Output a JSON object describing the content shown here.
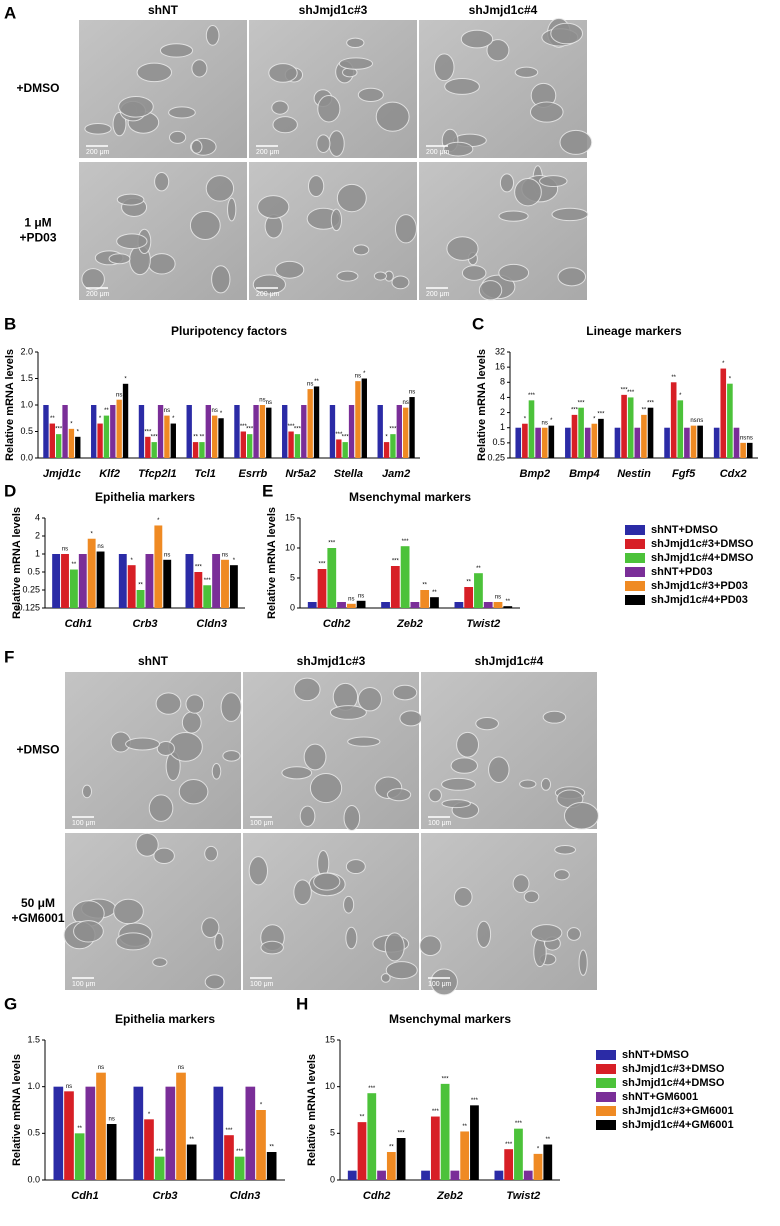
{
  "micrographs": [
    {
      "panel": "A",
      "columns": [
        "shNT",
        "shJmjd1c#3",
        "shJmjd1c#4"
      ],
      "rows": [
        [
          "+DMSO"
        ],
        [
          "1 μM",
          "+PD03"
        ]
      ],
      "scale_bar": "200 μm"
    },
    {
      "panel": "F",
      "columns": [
        "shNT",
        "shJmjd1c#3",
        "shJmjd1c#4"
      ],
      "rows": [
        [
          "+DMSO"
        ],
        [
          "50 μM",
          "+GM6001"
        ]
      ],
      "scale_bar": "100 μm"
    }
  ],
  "chart_data": [
    {
      "type": "bar",
      "panel": "B",
      "title": "Pluripotency factors",
      "y_label": "Relative mRNA levels",
      "categories": [
        "Jmjd1c",
        "Klf2",
        "Tfcp2l1",
        "Tcl1",
        "Esrrb",
        "Nr5a2",
        "Stella",
        "Jam2"
      ],
      "ylim": [
        0,
        2
      ],
      "yticks": [
        {
          "value": 0,
          "label": "0.0"
        },
        0.5,
        {
          "value": 1,
          "label": "1.0"
        },
        1.5,
        {
          "value": 2,
          "label": "2.0"
        }
      ],
      "series": [
        {
          "color": "#2b2ba6",
          "values": [
            1,
            1,
            1,
            1,
            1,
            1,
            1,
            1
          ]
        },
        {
          "color": "#d71f26",
          "values": [
            0.65,
            0.65,
            0.4,
            0.3,
            0.5,
            0.5,
            0.35,
            0.3
          ],
          "annotations": [
            "**",
            "*",
            "***",
            "**",
            "***",
            "***",
            "***",
            "*"
          ]
        },
        {
          "color": "#4cc23a",
          "values": [
            0.45,
            0.8,
            0.3,
            0.3,
            0.45,
            0.45,
            0.3,
            0.45
          ],
          "annotations": [
            "***",
            "**",
            "***",
            "**",
            "***",
            "***",
            "***",
            "***"
          ]
        },
        {
          "color": "#7a2e98",
          "values": [
            1,
            1,
            1,
            1,
            1,
            1,
            1,
            1
          ]
        },
        {
          "color": "#ef8a23",
          "values": [
            0.55,
            1.1,
            0.8,
            0.8,
            1,
            1.3,
            1.45,
            0.95
          ],
          "annotations": [
            "*",
            "ns",
            "ns",
            "ns",
            "ns",
            "ns",
            "ns",
            "ns"
          ]
        },
        {
          "color": "#000000",
          "values": [
            0.4,
            1.4,
            0.65,
            0.75,
            0.95,
            1.35,
            1.5,
            1.15
          ],
          "annotations": [
            "*",
            "*",
            "*",
            "*",
            "ns",
            "**",
            "*",
            "ns"
          ]
        }
      ]
    },
    {
      "type": "bar",
      "panel": "C",
      "title": "Lineage markers",
      "y_label": "Relative mRNA levels",
      "log_scale": 2,
      "categories": [
        "Bmp2",
        "Bmp4",
        "Nestin",
        "Fgf5",
        "Cdx2"
      ],
      "ylim": [
        0.25,
        32
      ],
      "yticks": [
        0.25,
        0.5,
        1,
        2,
        4,
        8,
        16,
        32
      ],
      "series": [
        {
          "color": "#2b2ba6",
          "values": [
            1,
            1,
            1,
            1,
            1
          ]
        },
        {
          "color": "#d71f26",
          "values": [
            1.2,
            1.8,
            4.5,
            8,
            15
          ],
          "annotations": [
            "*",
            "***",
            "***",
            "**",
            "*"
          ]
        },
        {
          "color": "#4cc23a",
          "values": [
            3.5,
            2.5,
            4,
            3.5,
            7.5
          ],
          "annotations": [
            "***",
            "***",
            "***",
            "*",
            "*"
          ]
        },
        {
          "color": "#7a2e98",
          "values": [
            1,
            1,
            1,
            1,
            1
          ]
        },
        {
          "color": "#ef8a23",
          "values": [
            1,
            1.2,
            1.8,
            1.1,
            0.5
          ],
          "annotations": [
            "ns",
            "*",
            "**",
            "ns",
            "ns"
          ]
        },
        {
          "color": "#000000",
          "values": [
            1.1,
            1.5,
            2.5,
            1.1,
            0.5
          ],
          "annotations": [
            "*",
            "***",
            "***",
            "ns",
            "ns"
          ]
        }
      ]
    },
    {
      "type": "bar",
      "panel": "D",
      "title": "Epithelia markers",
      "y_label": "Relative mRNA levels",
      "log_scale": 2,
      "categories": [
        "Cdh1",
        "Crb3",
        "Cldn3"
      ],
      "ylim": [
        0.125,
        4
      ],
      "yticks": [
        0.125,
        0.25,
        0.5,
        1,
        2,
        4
      ],
      "series": [
        {
          "color": "#2b2ba6",
          "values": [
            1,
            1,
            1
          ]
        },
        {
          "color": "#d71f26",
          "values": [
            1,
            0.65,
            0.5
          ],
          "annotations": [
            "ns",
            "*",
            "***"
          ]
        },
        {
          "color": "#4cc23a",
          "values": [
            0.55,
            0.25,
            0.3
          ],
          "annotations": [
            "**",
            "**",
            "***"
          ]
        },
        {
          "color": "#7a2e98",
          "values": [
            1,
            1,
            1
          ]
        },
        {
          "color": "#ef8a23",
          "values": [
            1.8,
            3,
            0.8
          ],
          "annotations": [
            "*",
            "*",
            "ns"
          ]
        },
        {
          "color": "#000000",
          "values": [
            1.1,
            0.8,
            0.65
          ],
          "annotations": [
            "ns",
            "ns",
            "*"
          ]
        }
      ]
    },
    {
      "type": "bar",
      "panel": "E",
      "title": "Msenchymal markers",
      "y_label": "Relative mRNA levels",
      "legend": "right",
      "categories": [
        "Cdh2",
        "Zeb2",
        "Twist2"
      ],
      "ylim": [
        0,
        15
      ],
      "yticks": [
        0,
        5,
        10,
        15
      ],
      "series": [
        {
          "name": "shNT+DMSO",
          "color": "#2b2ba6",
          "values": [
            1,
            1,
            1
          ]
        },
        {
          "name": "shJmjd1c#3+DMSO",
          "color": "#d71f26",
          "values": [
            6.5,
            7,
            3.5
          ],
          "annotations": [
            "***",
            "***",
            "**"
          ]
        },
        {
          "name": "shJmjd1c#4+DMSO",
          "color": "#4cc23a",
          "values": [
            10,
            10.3,
            5.8
          ],
          "annotations": [
            "***",
            "***",
            "**"
          ]
        },
        {
          "name": "shNT+PD03",
          "color": "#7a2e98",
          "values": [
            1,
            1,
            1
          ]
        },
        {
          "name": "shJmjd1c#3+PD03",
          "color": "#ef8a23",
          "values": [
            0.7,
            3,
            1
          ],
          "annotations": [
            "ns",
            "**",
            "ns"
          ]
        },
        {
          "name": "shJmjd1c#4+PD03",
          "color": "#000000",
          "values": [
            1.2,
            1.8,
            0.3
          ],
          "annotations": [
            "ns",
            "**",
            "**"
          ]
        }
      ]
    },
    {
      "type": "bar",
      "panel": "G",
      "title": "Epithelia markers",
      "y_label": "Relative mRNA levels",
      "categories": [
        "Cdh1",
        "Crb3",
        "Cldn3"
      ],
      "ylim": [
        0,
        1.5
      ],
      "yticks": [
        {
          "value": 0,
          "label": "0.0"
        },
        0.5,
        {
          "value": 1,
          "label": "1.0"
        },
        1.5
      ],
      "series": [
        {
          "color": "#2b2ba6",
          "values": [
            1,
            1,
            1
          ]
        },
        {
          "color": "#d71f26",
          "values": [
            0.95,
            0.65,
            0.48
          ],
          "annotations": [
            "ns",
            "*",
            "***"
          ]
        },
        {
          "color": "#4cc23a",
          "values": [
            0.5,
            0.25,
            0.25
          ],
          "annotations": [
            "**",
            "***",
            "***"
          ]
        },
        {
          "color": "#7a2e98",
          "values": [
            1,
            1,
            1
          ]
        },
        {
          "color": "#ef8a23",
          "values": [
            1.15,
            1.15,
            0.75
          ],
          "annotations": [
            "ns",
            "ns",
            "*"
          ]
        },
        {
          "color": "#000000",
          "values": [
            0.6,
            0.38,
            0.3
          ],
          "annotations": [
            "ns",
            "**",
            "**"
          ]
        }
      ]
    },
    {
      "type": "bar",
      "panel": "H",
      "title": "Msenchymal markers",
      "y_label": "Relative mRNA levels",
      "legend": "right",
      "categories": [
        "Cdh2",
        "Zeb2",
        "Twist2"
      ],
      "ylim": [
        0,
        15
      ],
      "yticks": [
        0,
        5,
        10,
        15
      ],
      "series": [
        {
          "name": "shNT+DMSO",
          "color": "#2b2ba6",
          "values": [
            1,
            1,
            1
          ]
        },
        {
          "name": "shJmjd1c#3+DMSO",
          "color": "#d71f26",
          "values": [
            6.2,
            6.8,
            3.3
          ],
          "annotations": [
            "**",
            "***",
            "***"
          ]
        },
        {
          "name": "shJmjd1c#4+DMSO",
          "color": "#4cc23a",
          "values": [
            9.3,
            10.3,
            5.5
          ],
          "annotations": [
            "***",
            "***",
            "***"
          ]
        },
        {
          "name": "shNT+GM6001",
          "color": "#7a2e98",
          "values": [
            1,
            1,
            1
          ]
        },
        {
          "name": "shJmjd1c#3+GM6001",
          "color": "#ef8a23",
          "values": [
            3,
            5.2,
            2.8
          ],
          "annotations": [
            "**",
            "**",
            "*"
          ]
        },
        {
          "name": "shJmjd1c#4+GM6001",
          "color": "#000000",
          "values": [
            4.5,
            8,
            3.8
          ],
          "annotations": [
            "***",
            "***",
            "**"
          ]
        }
      ]
    }
  ]
}
